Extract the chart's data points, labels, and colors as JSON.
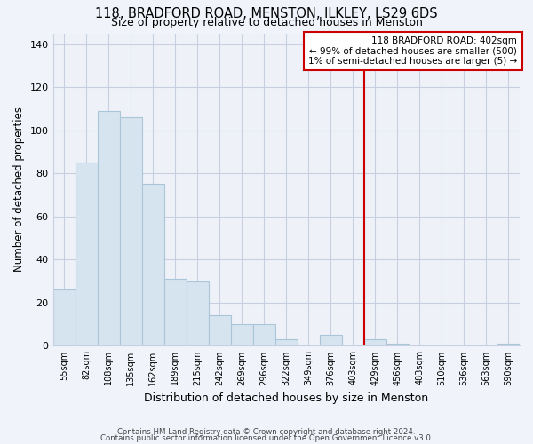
{
  "title": "118, BRADFORD ROAD, MENSTON, ILKLEY, LS29 6DS",
  "subtitle": "Size of property relative to detached houses in Menston",
  "xlabel": "Distribution of detached houses by size in Menston",
  "ylabel": "Number of detached properties",
  "bar_labels": [
    "55sqm",
    "82sqm",
    "108sqm",
    "135sqm",
    "162sqm",
    "189sqm",
    "215sqm",
    "242sqm",
    "269sqm",
    "296sqm",
    "322sqm",
    "349sqm",
    "376sqm",
    "403sqm",
    "429sqm",
    "456sqm",
    "483sqm",
    "510sqm",
    "536sqm",
    "563sqm",
    "590sqm"
  ],
  "bar_values": [
    26,
    85,
    109,
    106,
    75,
    31,
    30,
    14,
    10,
    10,
    3,
    0,
    5,
    0,
    3,
    1,
    0,
    0,
    0,
    0,
    1
  ],
  "bar_color": "#d6e4f0",
  "bar_edge_color": "#aac4d8",
  "vline_x_index": 13,
  "vline_color": "#cc0000",
  "annotation_title": "118 BRADFORD ROAD: 402sqm",
  "annotation_line1": "← 99% of detached houses are smaller (500)",
  "annotation_line2": "1% of semi-detached houses are larger (5) →",
  "annotation_box_color": "#ffffff",
  "annotation_border_color": "#cc0000",
  "ylim": [
    0,
    145
  ],
  "yticks": [
    0,
    20,
    40,
    60,
    80,
    100,
    120,
    140
  ],
  "plot_bg_color": "#eef2f8",
  "fig_bg_color": "#f0f4fa",
  "grid_color": "#c8cfe0",
  "footer1": "Contains HM Land Registry data © Crown copyright and database right 2024.",
  "footer2": "Contains public sector information licensed under the Open Government Licence v3.0."
}
